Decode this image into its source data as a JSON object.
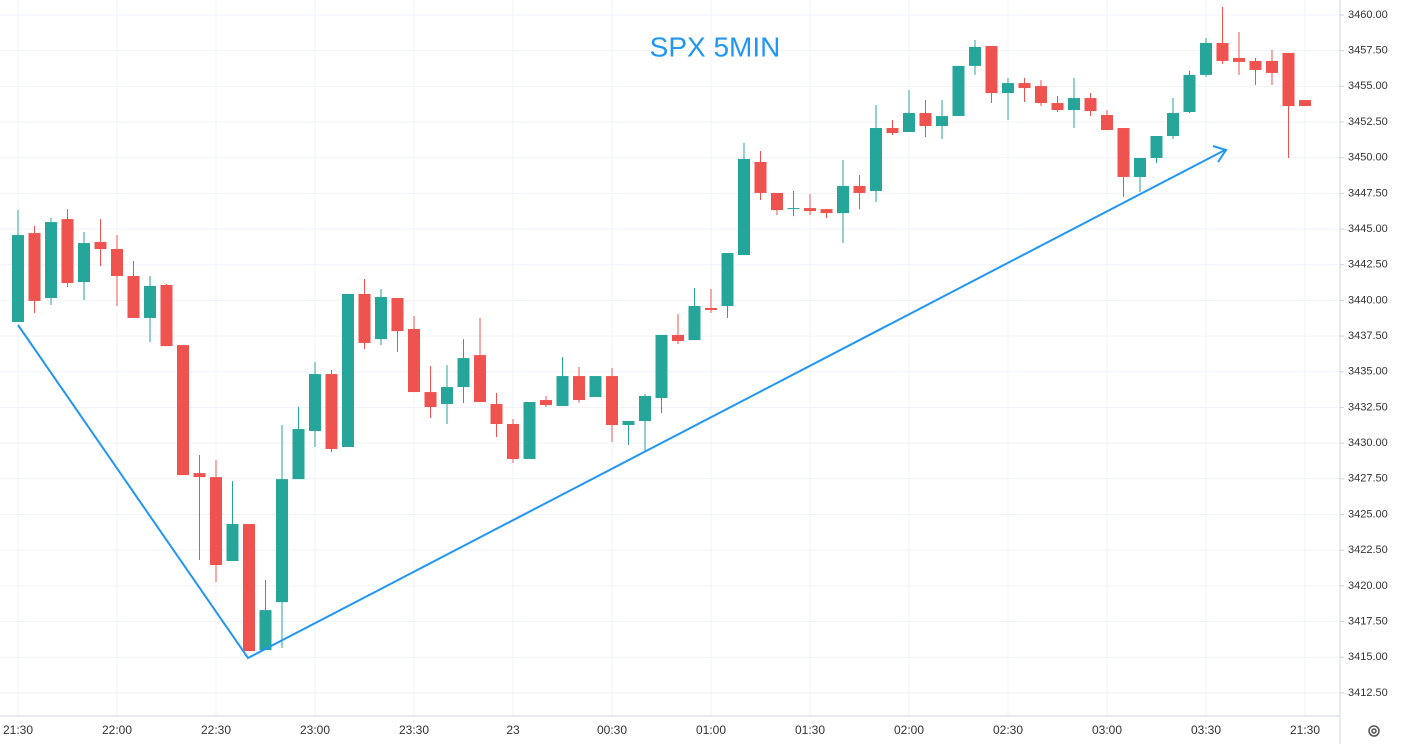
{
  "chart_data": {
    "type": "candlestick",
    "title": "SPX 5MIN",
    "categories": [
      "21:30",
      null,
      null,
      null,
      null,
      null,
      "22:00",
      null,
      null,
      null,
      null,
      null,
      "22:30",
      null,
      null,
      null,
      null,
      null,
      "23:00",
      null,
      null,
      null,
      null,
      null,
      "23:30",
      null,
      null,
      null,
      null,
      null,
      "23",
      null,
      null,
      null,
      null,
      null,
      "00:30",
      null,
      null,
      null,
      null,
      null,
      "01:00",
      null,
      null,
      null,
      null,
      null,
      "01:30",
      null,
      null,
      null,
      null,
      null,
      "02:00",
      null,
      null,
      null,
      null,
      null,
      "02:30",
      null,
      null,
      null,
      null,
      null,
      "03:00",
      null,
      null,
      null,
      null,
      null,
      "03:30",
      null,
      null,
      null,
      null,
      null,
      "21:30"
    ],
    "open": [
      3438.49,
      3444.72,
      3440.17,
      3445.7,
      3441.29,
      3444.09,
      3443.6,
      3441.71,
      3438.77,
      3441.08,
      3436.87,
      3427.9,
      3427.62,
      3421.74,
      3424.33,
      3415.5,
      3418.86,
      3427.48,
      3430.85,
      3434.84,
      3429.73,
      3440.45,
      3437.29,
      3440.17,
      3438.0,
      3433.58,
      3432.74,
      3433.93,
      3436.17,
      3432.74,
      3431.34,
      3428.89,
      3433.02,
      3432.6,
      3434.7,
      3433.23,
      3434.7,
      3431.27,
      3431.55,
      3433.16,
      3437.58,
      3437.22,
      3439.47,
      3439.61,
      3443.18,
      3449.7,
      3447.53,
      3446.4,
      3446.47,
      3446.4,
      3446.12,
      3448.02,
      3447.67,
      3452.08,
      3451.8,
      3453.13,
      3452.22,
      3452.92,
      3456.43,
      3457.83,
      3454.53,
      3455.23,
      3455.02,
      3453.83,
      3453.34,
      3454.18,
      3452.99,
      3452.08,
      3448.65,
      3449.98,
      3451.52,
      3453.2,
      3455.8,
      3458.04,
      3456.99,
      3456.78,
      3456.78,
      3457.34,
      3454.04
    ],
    "high": [
      3446.33,
      3445.21,
      3445.77,
      3446.4,
      3444.79,
      3445.7,
      3444.58,
      3442.76,
      3441.71,
      3441.15,
      3436.87,
      3429.17,
      3428.81,
      3427.34,
      3424.33,
      3420.41,
      3431.27,
      3432.53,
      3435.68,
      3435.12,
      3440.45,
      3441.5,
      3440.8,
      3440.17,
      3438.91,
      3435.4,
      3435.47,
      3437.29,
      3438.77,
      3433.51,
      3431.69,
      3432.88,
      3433.3,
      3436.03,
      3435.33,
      3434.7,
      3435.26,
      3431.55,
      3433.44,
      3437.58,
      3439.05,
      3440.87,
      3440.8,
      3443.32,
      3451.03,
      3450.47,
      3447.53,
      3447.67,
      3447.46,
      3446.4,
      3449.84,
      3448.79,
      3453.69,
      3452.64,
      3454.74,
      3454.04,
      3454.04,
      3456.43,
      3458.25,
      3457.83,
      3455.59,
      3455.59,
      3455.44,
      3454.32,
      3455.59,
      3454.53,
      3453.34,
      3452.08,
      3449.98,
      3451.52,
      3454.18,
      3456.08,
      3458.39,
      3460.56,
      3458.81,
      3456.99,
      3457.55,
      3457.34,
      3454.04
    ],
    "low": [
      3438.49,
      3439.12,
      3439.68,
      3440.94,
      3440.03,
      3442.41,
      3439.61,
      3438.77,
      3437.08,
      3436.8,
      3427.76,
      3421.81,
      3420.27,
      3421.74,
      3415.43,
      3415.5,
      3415.64,
      3427.48,
      3429.73,
      3429.38,
      3429.73,
      3436.59,
      3436.87,
      3436.38,
      3433.58,
      3431.76,
      3431.34,
      3432.81,
      3432.88,
      3430.43,
      3428.61,
      3428.89,
      3432.53,
      3432.6,
      3432.81,
      3433.23,
      3430.08,
      3429.87,
      3429.45,
      3432.11,
      3436.94,
      3437.22,
      3439.12,
      3438.77,
      3443.18,
      3447.04,
      3445.98,
      3445.91,
      3445.98,
      3445.77,
      3444.02,
      3446.4,
      3446.9,
      3451.59,
      3451.8,
      3451.45,
      3451.31,
      3452.92,
      3455.8,
      3453.83,
      3452.64,
      3453.9,
      3453.62,
      3453.2,
      3452.08,
      3452.92,
      3451.94,
      3447.25,
      3447.6,
      3449.63,
      3451.31,
      3453.13,
      3455.66,
      3456.57,
      3455.8,
      3455.09,
      3455.09,
      3449.98,
      3453.62
    ],
    "close": [
      3444.58,
      3439.96,
      3445.49,
      3441.22,
      3444.02,
      3443.6,
      3441.71,
      3438.77,
      3441.01,
      3436.8,
      3427.76,
      3427.62,
      3421.46,
      3424.33,
      3415.43,
      3418.3,
      3427.48,
      3430.99,
      3434.84,
      3429.59,
      3440.45,
      3437.02,
      3440.24,
      3437.85,
      3433.58,
      3432.53,
      3433.93,
      3435.96,
      3432.88,
      3431.34,
      3428.89,
      3432.88,
      3432.67,
      3434.7,
      3433.02,
      3434.7,
      3431.27,
      3431.55,
      3433.3,
      3437.58,
      3437.15,
      3439.61,
      3439.33,
      3443.32,
      3449.91,
      3447.53,
      3446.33,
      3446.47,
      3446.26,
      3446.12,
      3448.02,
      3447.53,
      3452.08,
      3451.73,
      3453.13,
      3452.22,
      3452.92,
      3456.43,
      3457.76,
      3454.53,
      3455.23,
      3454.88,
      3453.83,
      3453.34,
      3454.18,
      3453.27,
      3451.94,
      3448.65,
      3449.98,
      3451.52,
      3453.13,
      3455.8,
      3458.04,
      3456.78,
      3456.71,
      3456.15,
      3455.94,
      3453.62,
      3453.62
    ],
    "up_color": "#26a69a",
    "down_color": "#ef5350",
    "ylim": [
      3410.88,
      3461.05
    ],
    "yticks": [
      {
        "value": 3412.5,
        "label": "3412.50"
      },
      {
        "value": 3415,
        "label": "3415.00"
      },
      {
        "value": 3417.5,
        "label": "3417.50"
      },
      {
        "value": 3420,
        "label": "3420.00"
      },
      {
        "value": 3422.5,
        "label": "3422.50"
      },
      {
        "value": 3425,
        "label": "3425.00"
      },
      {
        "value": 3427.5,
        "label": "3427.50"
      },
      {
        "value": 3430,
        "label": "3430.00"
      },
      {
        "value": 3432.5,
        "label": "3432.50"
      },
      {
        "value": 3435,
        "label": "3435.00"
      },
      {
        "value": 3437.5,
        "label": "3437.50"
      },
      {
        "value": 3440,
        "label": "3440.00"
      },
      {
        "value": 3442.5,
        "label": "3442.50"
      },
      {
        "value": 3445,
        "label": "3445.00"
      },
      {
        "value": 3447.5,
        "label": "3447.50"
      },
      {
        "value": 3450,
        "label": "3450.00"
      },
      {
        "value": 3452.5,
        "label": "3452.50"
      },
      {
        "value": 3455,
        "label": "3455.00"
      },
      {
        "value": 3457.5,
        "label": "3457.50"
      },
      {
        "value": 3460,
        "label": "3460.00"
      }
    ],
    "grid": true
  }
}
